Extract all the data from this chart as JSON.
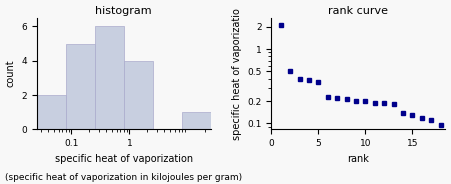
{
  "title_hist": "histogram",
  "title_rank": "rank curve",
  "xlabel_hist": "specific heat of vaporization",
  "xlabel_rank": "rank",
  "ylabel_hist": "count",
  "ylabel_rank": "specific heat of vaporizatio",
  "caption": "(specific heat of vaporization in kilojoules per gram)",
  "hist_bar_color": "#c8cfe0",
  "hist_bar_edgecolor": "#aaaacc",
  "rank_dot_color": "#00008b",
  "rank_values": [
    2.09,
    0.5,
    0.39,
    0.38,
    0.36,
    0.23,
    0.22,
    0.21,
    0.2,
    0.2,
    0.19,
    0.19,
    0.18,
    0.14,
    0.13,
    0.12,
    0.11,
    0.095
  ],
  "hist_bin_edges_log": [
    -1.6,
    -1.1,
    -0.6,
    -0.1,
    0.4,
    0.9,
    1.4
  ],
  "hist_counts": [
    2,
    5,
    6,
    4,
    0,
    1
  ],
  "ylim_hist": [
    0,
    6.5
  ],
  "xlim_rank": [
    0,
    18.5
  ],
  "fig_background": "#f8f8f8"
}
